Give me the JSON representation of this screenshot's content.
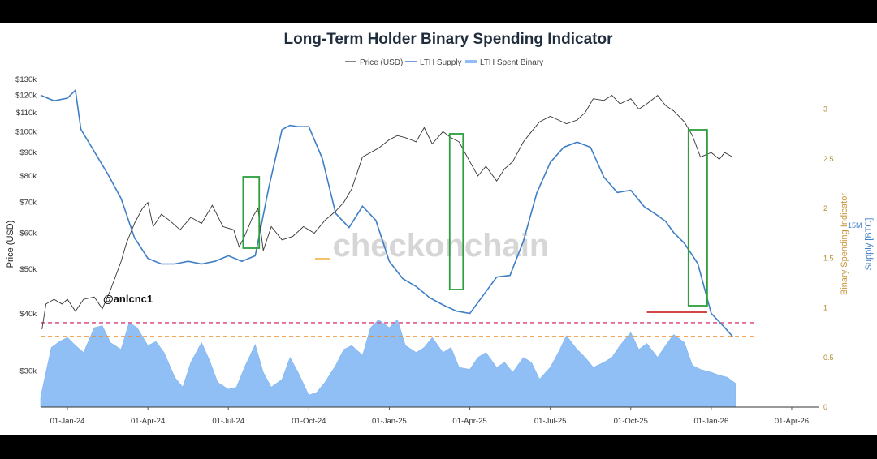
{
  "chart_data": {
    "type": "line",
    "title": "Long-Term Holder Binary Spending Indicator",
    "watermark": "checkonchain",
    "handle": "@anlcnc1",
    "legend": [
      {
        "name": "Price (USD)",
        "color": "#333333",
        "style": "line"
      },
      {
        "name": "LTH Supply",
        "color": "#3f7fc6",
        "style": "line"
      },
      {
        "name": "LTH Spent Binary",
        "color": "#8fbff5",
        "style": "area"
      }
    ],
    "x_axis": {
      "ticks": [
        "01-Jan-24",
        "01-Apr-24",
        "01-Jul-24",
        "01-Oct-24",
        "01-Jan-25",
        "01-Apr-25",
        "01-Jul-25",
        "01-Oct-25",
        "01-Jan-26",
        "01-Apr-26"
      ],
      "range_months": [
        -1,
        28
      ]
    },
    "y_left": {
      "label": "Price (USD)",
      "scale": "log",
      "range": [
        25000,
        130000
      ],
      "ticks": [
        {
          "v": 130000,
          "label": "$130k"
        },
        {
          "v": 120000,
          "label": "$120k"
        },
        {
          "v": 110000,
          "label": "$110k"
        },
        {
          "v": 100000,
          "label": "$100k"
        },
        {
          "v": 90000,
          "label": "$90k"
        },
        {
          "v": 80000,
          "label": "$80k"
        },
        {
          "v": 70000,
          "label": "$70k"
        },
        {
          "v": 60000,
          "label": "$60k"
        },
        {
          "v": 50000,
          "label": "$50k"
        },
        {
          "v": 40000,
          "label": "$40k"
        },
        {
          "v": 30000,
          "label": "$30k"
        }
      ]
    },
    "y_right": {
      "label": "Binary Spending Indicator",
      "range": [
        0,
        3.3
      ],
      "ticks": [
        {
          "v": 3,
          "label": "3"
        },
        {
          "v": 2.5,
          "label": "2.5"
        },
        {
          "v": 2,
          "label": "2"
        },
        {
          "v": 1.5,
          "label": "1.5"
        },
        {
          "v": 1,
          "label": "1"
        },
        {
          "v": 0.5,
          "label": "0.5"
        },
        {
          "v": 0,
          "label": "0"
        }
      ]
    },
    "y_supply": {
      "label": "Supply [BTC]",
      "tick": "15M"
    },
    "reference_lines": [
      {
        "value": 0.85,
        "color": "#e05a8a",
        "style": "dashed"
      },
      {
        "value": 0.71,
        "color": "#f08a24",
        "style": "dashed"
      }
    ],
    "price": {
      "x": [
        -0.95,
        -0.8,
        -0.5,
        -0.2,
        0.0,
        0.3,
        0.6,
        1.0,
        1.3,
        1.6,
        2.0,
        2.2,
        2.5,
        2.8,
        3.0,
        3.2,
        3.5,
        3.8,
        4.2,
        4.6,
        5.0,
        5.4,
        5.8,
        6.2,
        6.4,
        6.6,
        6.9,
        7.1,
        7.3,
        7.6,
        8.0,
        8.4,
        8.8,
        9.2,
        9.6,
        10.0,
        10.3,
        10.6,
        11.0,
        11.3,
        11.6,
        12.0,
        12.3,
        12.6,
        13.0,
        13.3,
        13.6,
        14.0,
        14.3,
        14.6,
        15.0,
        15.3,
        15.6,
        16.0,
        16.3,
        16.6,
        17.0,
        17.3,
        17.6,
        18.0,
        18.3,
        18.6,
        19.0,
        19.3,
        19.6,
        20.0,
        20.3,
        20.6,
        21.0,
        21.3,
        21.6,
        22.0,
        22.3,
        22.6,
        23.0,
        23.3,
        23.6,
        24.0,
        24.3,
        24.5,
        24.8
      ],
      "y": [
        37000,
        42000,
        43000,
        42000,
        43000,
        40500,
        43000,
        43500,
        41000,
        45000,
        52000,
        57000,
        63000,
        68000,
        70000,
        62000,
        66000,
        64000,
        61000,
        65000,
        63000,
        69000,
        62000,
        61000,
        56000,
        59000,
        65000,
        68000,
        55000,
        62000,
        58000,
        59000,
        62000,
        60000,
        64000,
        67000,
        70000,
        75000,
        88000,
        90000,
        92000,
        96000,
        98000,
        97000,
        95000,
        102000,
        94000,
        100000,
        97000,
        95000,
        86000,
        80000,
        84000,
        78000,
        83000,
        86000,
        95000,
        100000,
        105000,
        108000,
        106000,
        104000,
        106000,
        110000,
        118000,
        117000,
        120000,
        115000,
        118000,
        112000,
        115000,
        120000,
        114000,
        111000,
        105000,
        98000,
        88000,
        90000,
        87000,
        90000,
        88000
      ]
    },
    "lth_supply": {
      "x": [
        -1.0,
        -0.5,
        0.0,
        0.3,
        0.5,
        1.0,
        1.5,
        2.0,
        2.5,
        3.0,
        3.5,
        4.0,
        4.5,
        5.0,
        5.5,
        6.0,
        6.5,
        7.0,
        7.5,
        8.0,
        8.3,
        8.6,
        9.0,
        9.5,
        10.0,
        10.5,
        11.0,
        11.5,
        12.0,
        12.5,
        13.0,
        13.5,
        14.0,
        14.5,
        15.0,
        15.5,
        16.0,
        16.5,
        17.0,
        17.5,
        18.0,
        18.5,
        19.0,
        19.5,
        20.0,
        20.5,
        21.0,
        21.5,
        22.0,
        22.3,
        22.6,
        23.0,
        23.5,
        24.0,
        24.5,
        24.8
      ],
      "y": [
        0.952,
        0.935,
        0.943,
        0.967,
        0.848,
        0.78,
        0.712,
        0.637,
        0.517,
        0.454,
        0.437,
        0.437,
        0.445,
        0.437,
        0.445,
        0.462,
        0.445,
        0.462,
        0.668,
        0.847,
        0.86,
        0.856,
        0.856,
        0.759,
        0.591,
        0.548,
        0.613,
        0.57,
        0.445,
        0.392,
        0.368,
        0.334,
        0.312,
        0.293,
        0.286,
        0.341,
        0.397,
        0.402,
        0.507,
        0.654,
        0.747,
        0.793,
        0.809,
        0.793,
        0.702,
        0.655,
        0.662,
        0.612,
        0.585,
        0.567,
        0.533,
        0.5,
        0.438,
        0.286,
        0.243,
        0.215
      ]
    },
    "lth_spent_binary": {
      "x": [
        -1.0,
        -0.6,
        -0.3,
        0.0,
        0.3,
        0.6,
        1.0,
        1.3,
        1.6,
        2.0,
        2.3,
        2.6,
        3.0,
        3.3,
        3.6,
        4.0,
        4.3,
        4.6,
        5.0,
        5.3,
        5.6,
        6.0,
        6.3,
        6.6,
        7.0,
        7.3,
        7.6,
        8.0,
        8.3,
        8.6,
        9.0,
        9.3,
        9.6,
        10.0,
        10.3,
        10.6,
        11.0,
        11.3,
        11.6,
        12.0,
        12.3,
        12.6,
        13.0,
        13.3,
        13.6,
        14.0,
        14.3,
        14.6,
        15.0,
        15.3,
        15.6,
        16.0,
        16.3,
        16.6,
        17.0,
        17.3,
        17.6,
        18.0,
        18.3,
        18.6,
        19.0,
        19.3,
        19.6,
        20.0,
        20.3,
        20.6,
        21.0,
        21.3,
        21.6,
        22.0,
        22.3,
        22.6,
        23.0,
        23.3,
        23.6,
        24.0,
        24.3,
        24.6,
        24.9
      ],
      "y": [
        0.1,
        0.6,
        0.66,
        0.7,
        0.62,
        0.55,
        0.8,
        0.82,
        0.65,
        0.58,
        0.85,
        0.8,
        0.62,
        0.66,
        0.55,
        0.3,
        0.2,
        0.45,
        0.65,
        0.47,
        0.25,
        0.18,
        0.2,
        0.4,
        0.63,
        0.35,
        0.2,
        0.28,
        0.5,
        0.35,
        0.12,
        0.15,
        0.25,
        0.42,
        0.58,
        0.62,
        0.52,
        0.8,
        0.88,
        0.8,
        0.88,
        0.62,
        0.55,
        0.6,
        0.7,
        0.55,
        0.6,
        0.4,
        0.38,
        0.5,
        0.55,
        0.4,
        0.45,
        0.35,
        0.5,
        0.45,
        0.28,
        0.4,
        0.55,
        0.72,
        0.58,
        0.5,
        0.4,
        0.45,
        0.5,
        0.62,
        0.75,
        0.58,
        0.64,
        0.5,
        0.62,
        0.73,
        0.65,
        0.42,
        0.38,
        0.35,
        0.32,
        0.3,
        0.24
      ]
    },
    "highlight_boxes": [
      {
        "x0": 6.55,
        "x1": 7.15
      },
      {
        "x0": 14.25,
        "x1": 14.75
      },
      {
        "x0": 23.15,
        "x1": 23.85
      }
    ],
    "low_marker": {
      "x0": 21.6,
      "x1": 23.85,
      "price": 40300,
      "color": "#cc2b2b"
    }
  }
}
